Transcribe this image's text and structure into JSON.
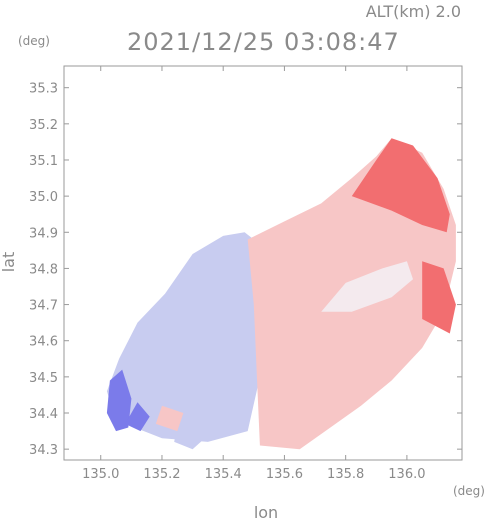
{
  "chart_data": {
    "type": "heatmap",
    "title": "2021/12/25 03:08:47",
    "header_label": "ALT(km) 2.0",
    "xlabel": "lon",
    "ylabel": "lat",
    "x_unit": "(deg)",
    "y_unit": "(deg)",
    "xlim": [
      134.88,
      136.18
    ],
    "ylim": [
      34.27,
      35.36
    ],
    "x_ticks": [
      135.0,
      135.2,
      135.4,
      135.6,
      135.8,
      136.0
    ],
    "x_tick_labels": [
      "135.0",
      "135.2",
      "135.4",
      "135.6",
      "135.8",
      "136.0"
    ],
    "y_ticks": [
      34.3,
      34.4,
      34.5,
      34.6,
      34.7,
      34.8,
      34.9,
      35.0,
      35.1,
      35.2,
      35.3
    ],
    "y_tick_labels": [
      "34.3",
      "34.4",
      "34.5",
      "34.6",
      "34.7",
      "34.8",
      "34.9",
      "35.0",
      "35.1",
      "35.2",
      "35.3"
    ],
    "grid": false,
    "colors": {
      "strong_negative": "#7b7bea",
      "weak_negative": "#c8ccf0",
      "neutral": "#f4eaee",
      "weak_positive": "#f7c6c6",
      "strong_positive": "#f26e70",
      "axis": "#9a9a9a",
      "text": "#8a8a8a"
    },
    "regions": [
      {
        "value": -0.3,
        "points": [
          [
            135.21,
            34.73
          ],
          [
            135.3,
            34.84
          ],
          [
            135.4,
            34.89
          ],
          [
            135.47,
            34.9
          ],
          [
            135.5,
            34.88
          ],
          [
            135.51,
            34.7
          ],
          [
            135.52,
            34.5
          ],
          [
            135.48,
            34.35
          ],
          [
            135.35,
            34.32
          ],
          [
            135.2,
            34.33
          ],
          [
            135.05,
            34.38
          ],
          [
            135.02,
            34.46
          ],
          [
            135.06,
            34.55
          ],
          [
            135.12,
            34.65
          ]
        ]
      },
      {
        "value": -0.65,
        "points": [
          [
            135.02,
            34.4
          ],
          [
            135.05,
            34.35
          ],
          [
            135.09,
            34.36
          ],
          [
            135.1,
            34.44
          ],
          [
            135.07,
            34.52
          ],
          [
            135.03,
            34.49
          ]
        ]
      },
      {
        "value": -0.55,
        "points": [
          [
            135.08,
            34.37
          ],
          [
            135.13,
            34.35
          ],
          [
            135.16,
            34.39
          ],
          [
            135.12,
            34.43
          ]
        ]
      },
      {
        "value": -0.5,
        "points": [
          [
            135.24,
            34.32
          ],
          [
            135.3,
            34.3
          ],
          [
            135.34,
            34.33
          ],
          [
            135.3,
            34.38
          ],
          [
            135.25,
            34.37
          ]
        ]
      },
      {
        "value": 0.35,
        "points": [
          [
            135.48,
            34.88
          ],
          [
            135.6,
            34.93
          ],
          [
            135.72,
            34.98
          ],
          [
            135.82,
            35.05
          ],
          [
            135.9,
            35.11
          ],
          [
            135.95,
            35.16
          ],
          [
            136.05,
            35.12
          ],
          [
            136.12,
            35.02
          ],
          [
            136.16,
            34.92
          ],
          [
            136.16,
            34.82
          ],
          [
            136.12,
            34.68
          ],
          [
            136.05,
            34.58
          ],
          [
            135.95,
            34.49
          ],
          [
            135.85,
            34.42
          ],
          [
            135.75,
            34.36
          ],
          [
            135.65,
            34.3
          ],
          [
            135.52,
            34.31
          ],
          [
            135.51,
            34.5
          ],
          [
            135.5,
            34.7
          ]
        ]
      },
      {
        "value": 0.7,
        "points": [
          [
            135.82,
            35.0
          ],
          [
            135.9,
            35.1
          ],
          [
            135.95,
            35.16
          ],
          [
            136.02,
            35.14
          ],
          [
            136.1,
            35.05
          ],
          [
            136.14,
            34.95
          ],
          [
            136.13,
            34.9
          ],
          [
            136.05,
            34.92
          ],
          [
            135.95,
            34.96
          ]
        ]
      },
      {
        "value": 0.6,
        "points": [
          [
            136.05,
            34.82
          ],
          [
            136.12,
            34.8
          ],
          [
            136.16,
            34.7
          ],
          [
            136.14,
            34.62
          ],
          [
            136.05,
            34.66
          ]
        ]
      },
      {
        "value": 0.5,
        "points": [
          [
            135.18,
            34.37
          ],
          [
            135.25,
            34.35
          ],
          [
            135.27,
            34.4
          ],
          [
            135.2,
            34.42
          ]
        ]
      },
      {
        "value": 0.0,
        "points": [
          [
            135.72,
            34.68
          ],
          [
            135.8,
            34.76
          ],
          [
            135.92,
            34.8
          ],
          [
            136.0,
            34.82
          ],
          [
            136.02,
            34.77
          ],
          [
            135.95,
            34.72
          ],
          [
            135.82,
            34.68
          ]
        ]
      }
    ]
  }
}
